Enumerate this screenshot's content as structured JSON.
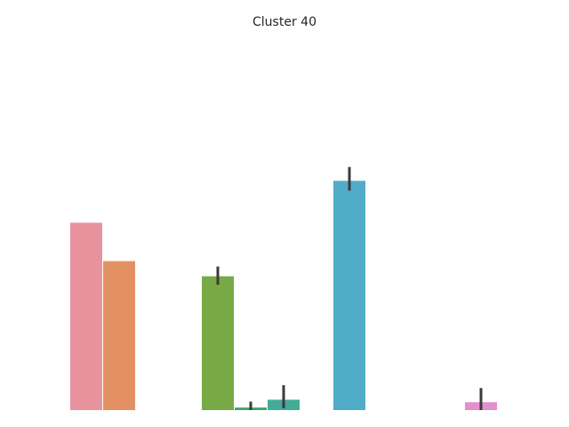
{
  "chart_data": {
    "type": "bar",
    "title": "Cluster 40",
    "xlabel": "",
    "ylabel": "",
    "axes_visible": false,
    "grid": false,
    "ylim": [
      0,
      1
    ],
    "error_bars": true,
    "bars": [
      {
        "group": 0,
        "value": 0.595,
        "color": "#e8929e",
        "err": null
      },
      {
        "group": 1,
        "value": 0.473,
        "color": "#e39163",
        "err": null
      },
      {
        "group": 4,
        "value": 0.425,
        "color": "#77aa45",
        "err": [
          0.398,
          0.456
        ]
      },
      {
        "group": 5,
        "value": 0.008,
        "color": "#3ba36a",
        "err": [
          0.0,
          0.027
        ]
      },
      {
        "group": 6,
        "value": 0.033,
        "color": "#44aa98",
        "err": [
          0.006,
          0.079
        ]
      },
      {
        "group": 8,
        "value": 0.728,
        "color": "#51acca",
        "err": [
          0.697,
          0.772
        ]
      },
      {
        "group": 12,
        "value": 0.025,
        "color": "#e38fca",
        "err": [
          0.0,
          0.07
        ]
      }
    ]
  }
}
